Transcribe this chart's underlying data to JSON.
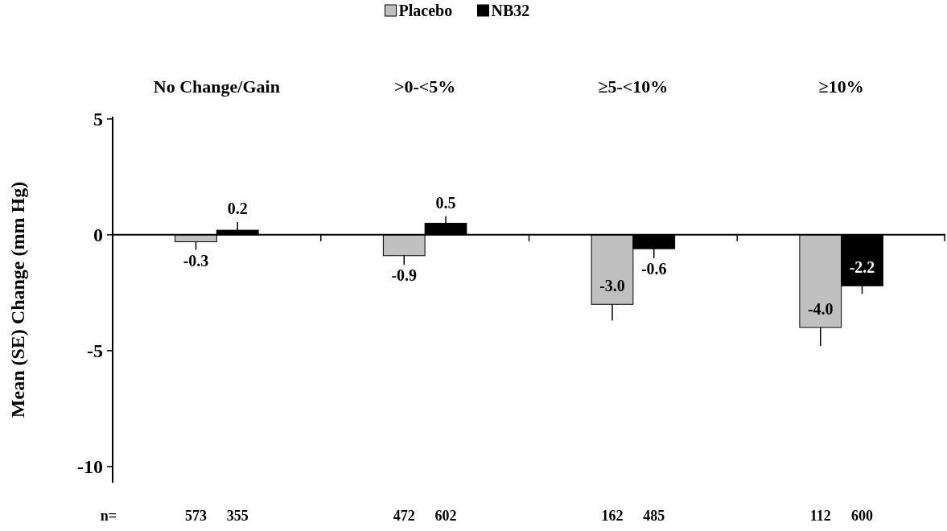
{
  "chart_data": {
    "type": "bar",
    "ylabel": "Mean (SE) Change (mm Hg)",
    "categories": [
      "No Change/Gain",
      ">0-<5%",
      "≥5-<10%",
      "≥10%"
    ],
    "series": [
      {
        "name": "Placebo",
        "color": "#c0c0c0",
        "values": [
          -0.3,
          -0.9,
          -3.0,
          -4.0
        ],
        "value_labels": [
          "-0.3",
          "-0.9",
          "-3.0",
          "-4.0"
        ],
        "errors": [
          [
            -0.65,
            -0.3
          ],
          [
            -1.3,
            -0.9
          ],
          [
            -3.7,
            -3.0
          ],
          [
            -4.8,
            -4.0
          ]
        ]
      },
      {
        "name": "NB32",
        "color": "#000000",
        "values": [
          0.2,
          0.5,
          -0.6,
          -2.2
        ],
        "value_labels": [
          "0.2",
          "0.5",
          "-0.6",
          "-2.2"
        ],
        "errors": [
          [
            0.2,
            0.55
          ],
          [
            0.5,
            0.8
          ],
          [
            -1.0,
            -0.6
          ],
          [
            -2.55,
            -2.2
          ]
        ]
      }
    ],
    "ylim": [
      -10.7,
      5.1
    ],
    "yticks": [
      5,
      0,
      -5,
      -10
    ],
    "legend": "top",
    "annotations": [
      "n=",
      "573",
      "355",
      "472",
      "602",
      "162",
      "485",
      "112",
      "600"
    ]
  }
}
